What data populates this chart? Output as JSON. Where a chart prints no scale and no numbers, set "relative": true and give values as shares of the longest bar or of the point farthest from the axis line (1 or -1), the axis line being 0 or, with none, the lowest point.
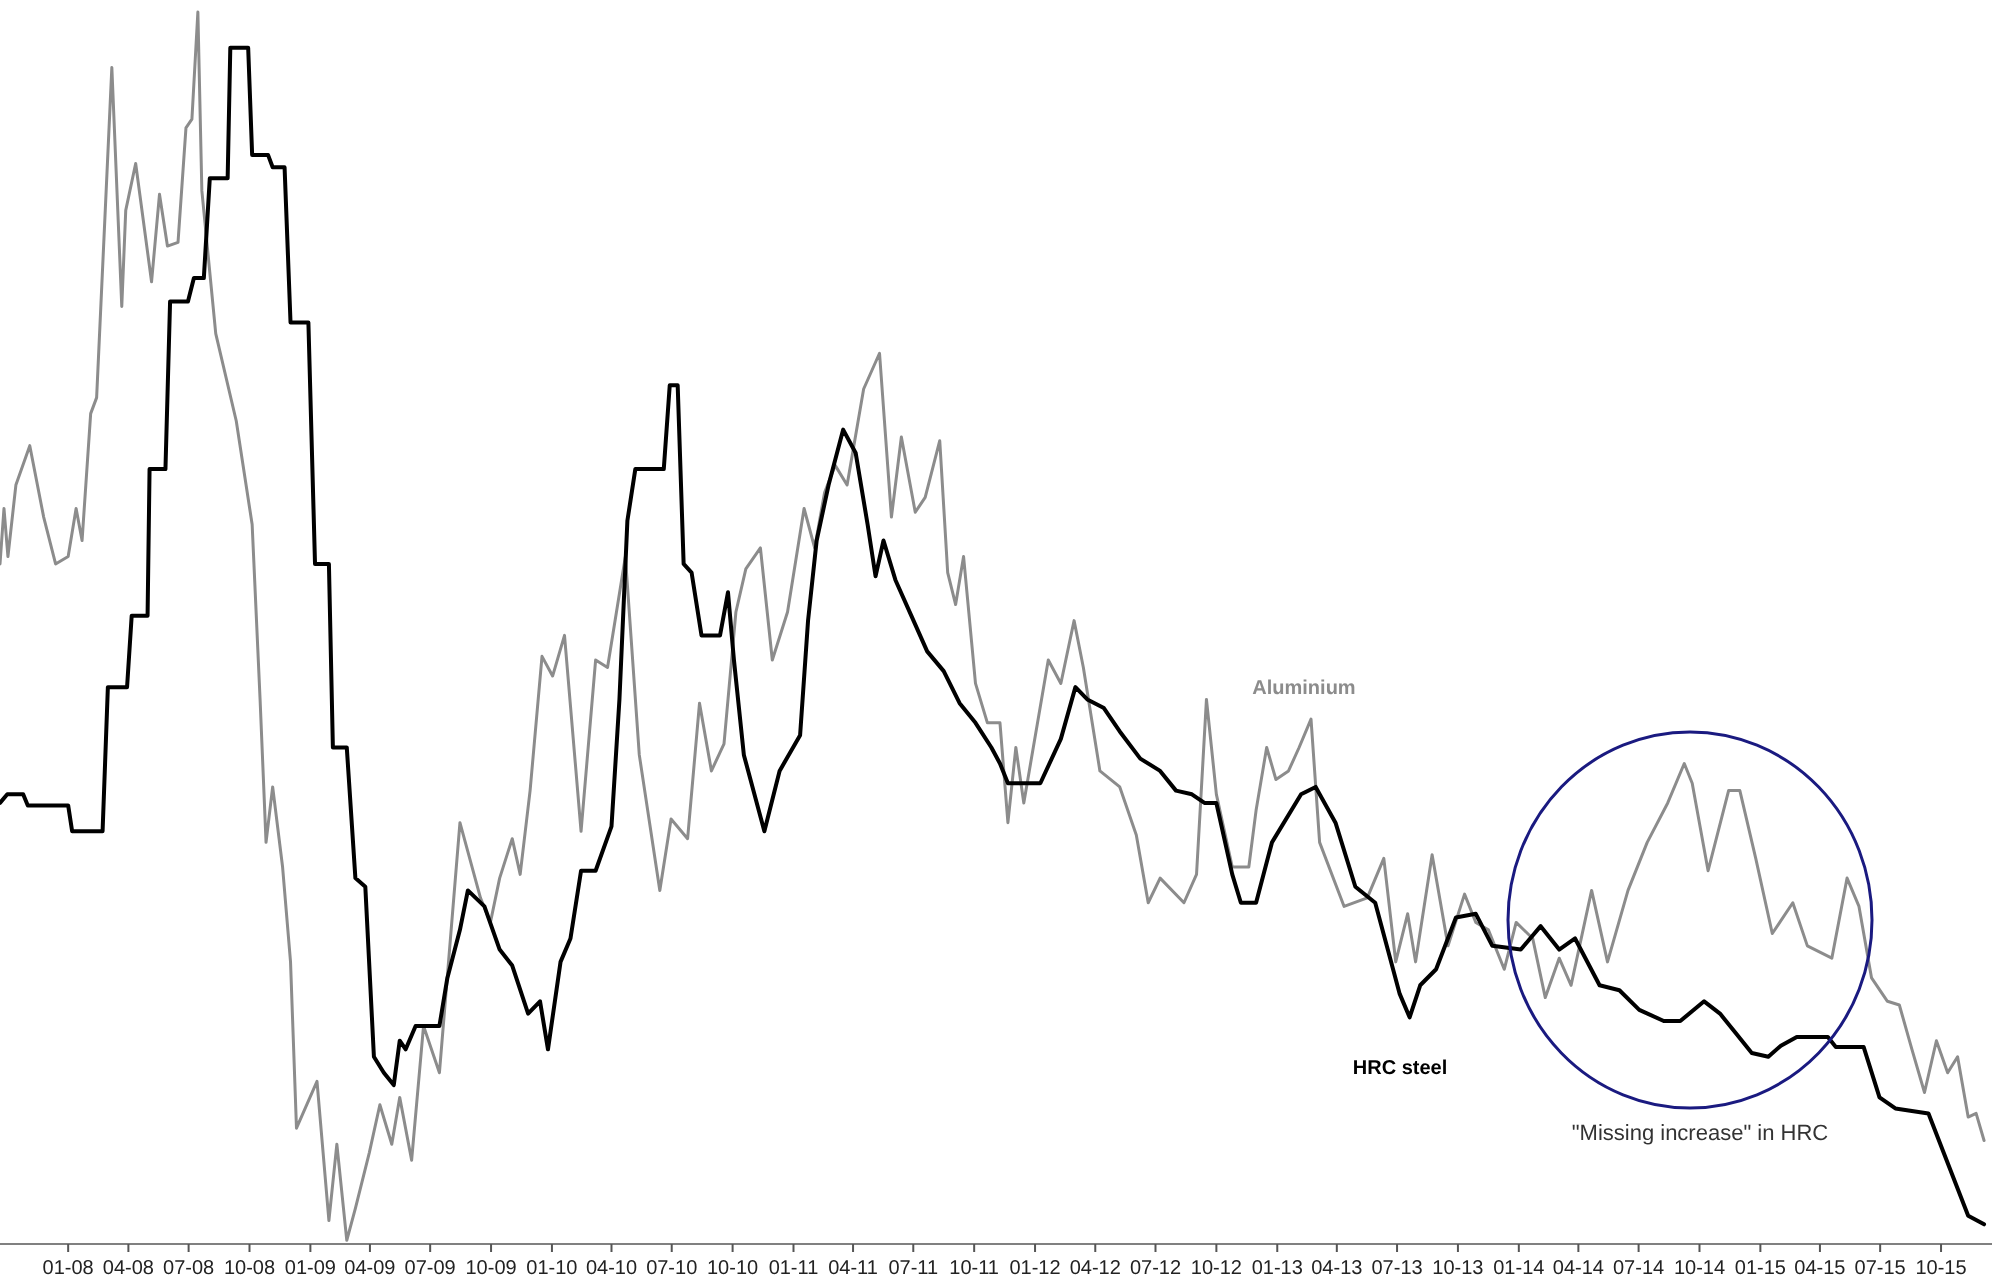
{
  "chart_data": {
    "type": "line",
    "relative": true,
    "xlim": [
      "2007-09-20",
      "2015-12-17"
    ],
    "xticks": [
      {
        "value": "2008-01",
        "label": "01-08"
      },
      {
        "value": "2008-04",
        "label": "04-08"
      },
      {
        "value": "2008-07",
        "label": "07-08"
      },
      {
        "value": "2008-10",
        "label": "10-08"
      },
      {
        "value": "2009-01",
        "label": "01-09"
      },
      {
        "value": "2009-04",
        "label": "04-09"
      },
      {
        "value": "2009-07",
        "label": "07-09"
      },
      {
        "value": "2009-10",
        "label": "10-09"
      },
      {
        "value": "2010-01",
        "label": "01-10"
      },
      {
        "value": "2010-04",
        "label": "04-10"
      },
      {
        "value": "2010-07",
        "label": "07-10"
      },
      {
        "value": "2010-10",
        "label": "10-10"
      },
      {
        "value": "2011-01",
        "label": "01-11"
      },
      {
        "value": "2011-04",
        "label": "04-11"
      },
      {
        "value": "2011-07",
        "label": "07-11"
      },
      {
        "value": "2011-10",
        "label": "10-11"
      },
      {
        "value": "2012-01",
        "label": "01-12"
      },
      {
        "value": "2012-04",
        "label": "04-12"
      },
      {
        "value": "2012-07",
        "label": "07-12"
      },
      {
        "value": "2012-10",
        "label": "10-12"
      },
      {
        "value": "2013-01",
        "label": "01-13"
      },
      {
        "value": "2013-04",
        "label": "04-13"
      },
      {
        "value": "2013-07",
        "label": "07-13"
      },
      {
        "value": "2013-10",
        "label": "10-13"
      },
      {
        "value": "2014-01",
        "label": "01-14"
      },
      {
        "value": "2014-04",
        "label": "04-14"
      },
      {
        "value": "2014-07",
        "label": "07-14"
      },
      {
        "value": "2014-10",
        "label": "10-14"
      },
      {
        "value": "2015-01",
        "label": "01-15"
      },
      {
        "value": "2015-04",
        "label": "04-15"
      },
      {
        "value": "2015-07",
        "label": "07-15"
      },
      {
        "value": "2015-10",
        "label": "10-15"
      }
    ],
    "annotations": [
      "\"Missing increase\" in HRC"
    ],
    "series": [
      {
        "name": "Aluminium",
        "color": "#8c8c8c",
        "x": [
          "2007-09-20",
          "2007-09-26",
          "2007-10-02",
          "2007-10-14",
          "2007-11-04",
          "2007-11-25",
          "2007-12-13",
          "2008-01-01",
          "2008-01-13",
          "2008-01-22",
          "2008-02-04",
          "2008-02-13",
          "2008-03-07",
          "2008-03-22",
          "2008-03-28",
          "2008-04-12",
          "2008-05-06",
          "2008-05-18",
          "2008-05-30",
          "2008-06-15",
          "2008-06-27",
          "2008-07-06",
          "2008-07-15",
          "2008-07-21",
          "2008-08-11",
          "2008-09-11",
          "2008-10-05",
          "2008-10-17",
          "2008-10-26",
          "2008-11-05",
          "2008-11-20",
          "2008-12-02",
          "2008-12-11",
          "2009-01-11",
          "2009-01-29",
          "2009-02-10",
          "2009-02-25",
          "2009-03-10",
          "2009-03-31",
          "2009-04-16",
          "2009-05-04",
          "2009-05-16",
          "2009-06-03",
          "2009-06-21",
          "2009-07-15",
          "2009-08-15",
          "2009-09-15",
          "2009-09-30",
          "2009-10-14",
          "2009-11-02",
          "2009-11-14",
          "2009-11-29",
          "2009-12-17",
          "2010-01-02",
          "2010-01-20",
          "2010-02-14",
          "2010-03-08",
          "2010-03-26",
          "2010-04-22",
          "2010-05-13",
          "2010-06-13",
          "2010-06-30",
          "2010-07-25",
          "2010-08-12",
          "2010-08-30",
          "2010-09-18",
          "2010-10-06",
          "2010-10-21",
          "2010-11-12",
          "2010-11-30",
          "2010-12-23",
          "2011-01-17",
          "2011-02-02",
          "2011-02-17",
          "2011-03-05",
          "2011-03-23",
          "2011-04-17",
          "2011-05-11",
          "2011-05-29",
          "2011-06-13",
          "2011-07-04",
          "2011-07-19",
          "2011-08-10",
          "2011-08-22",
          "2011-09-03",
          "2011-09-15",
          "2011-10-03",
          "2011-10-21",
          "2011-11-09",
          "2011-11-21",
          "2011-12-03",
          "2011-12-15",
          "2012-01-21",
          "2012-02-09",
          "2012-02-29",
          "2012-03-14",
          "2012-04-08",
          "2012-05-08",
          "2012-06-02",
          "2012-06-20",
          "2012-07-08",
          "2012-08-13",
          "2012-09-01",
          "2012-09-16",
          "2012-10-01",
          "2012-10-25",
          "2012-11-19",
          "2012-11-30",
          "2012-12-16",
          "2012-12-30",
          "2013-01-18",
          "2013-02-03",
          "2013-02-21",
          "2013-03-06",
          "2013-04-12",
          "2013-05-17",
          "2013-06-11",
          "2013-06-29",
          "2013-07-17",
          "2013-07-29",
          "2013-08-23",
          "2013-09-16",
          "2013-10-11",
          "2013-10-28",
          "2013-11-16",
          "2013-12-10",
          "2013-12-28",
          "2014-01-22",
          "2014-02-10",
          "2014-03-03",
          "2014-03-21",
          "2014-04-21",
          "2014-05-15",
          "2014-06-15",
          "2014-07-14",
          "2014-08-14",
          "2014-09-08",
          "2014-09-20",
          "2014-10-14",
          "2014-11-14",
          "2014-12-01",
          "2014-12-25",
          "2015-01-19",
          "2015-02-19",
          "2015-03-13",
          "2015-04-19",
          "2015-05-12",
          "2015-05-30",
          "2015-06-18",
          "2015-07-12",
          "2015-07-30",
          "2015-08-18",
          "2015-09-06",
          "2015-09-24",
          "2015-10-11",
          "2015-10-26",
          "2015-11-11",
          "2015-11-23",
          "2015-12-05"
        ],
        "values": [
          0.552,
          0.597,
          0.558,
          0.616,
          0.648,
          0.59,
          0.552,
          0.558,
          0.597,
          0.571,
          0.674,
          0.687,
          0.955,
          0.761,
          0.839,
          0.877,
          0.781,
          0.852,
          0.81,
          0.813,
          0.906,
          0.913,
          1.0,
          0.855,
          0.739,
          0.668,
          0.584,
          0.442,
          0.326,
          0.371,
          0.306,
          0.229,
          0.094,
          0.132,
          0.019,
          0.081,
          0.003,
          0.029,
          0.074,
          0.113,
          0.081,
          0.119,
          0.068,
          0.177,
          0.139,
          0.342,
          0.281,
          0.261,
          0.297,
          0.329,
          0.3,
          0.368,
          0.477,
          0.461,
          0.494,
          0.335,
          0.474,
          0.468,
          0.558,
          0.397,
          0.287,
          0.345,
          0.329,
          0.439,
          0.384,
          0.406,
          0.513,
          0.548,
          0.565,
          0.474,
          0.513,
          0.597,
          0.565,
          0.61,
          0.632,
          0.616,
          0.694,
          0.723,
          0.59,
          0.655,
          0.594,
          0.606,
          0.652,
          0.545,
          0.519,
          0.558,
          0.455,
          0.423,
          0.423,
          0.342,
          0.403,
          0.358,
          0.474,
          0.455,
          0.506,
          0.468,
          0.384,
          0.371,
          0.332,
          0.277,
          0.297,
          0.277,
          0.3,
          0.442,
          0.365,
          0.306,
          0.306,
          0.352,
          0.403,
          0.377,
          0.384,
          0.403,
          0.426,
          0.326,
          0.274,
          0.281,
          0.313,
          0.229,
          0.268,
          0.229,
          0.316,
          0.242,
          0.284,
          0.261,
          0.255,
          0.223,
          0.261,
          0.248,
          0.2,
          0.232,
          0.21,
          0.287,
          0.229,
          0.287,
          0.326,
          0.358,
          0.39,
          0.374,
          0.303,
          0.368,
          0.368,
          0.313,
          0.252,
          0.277,
          0.242,
          0.232,
          0.297,
          0.274,
          0.216,
          0.197,
          0.194,
          0.158,
          0.123,
          0.165,
          0.139,
          0.152,
          0.103,
          0.106,
          0.084
        ]
      },
      {
        "name": "HRC steel",
        "color": "#000000",
        "x": [
          "2007-09-20",
          "2007-10-01",
          "2007-10-25",
          "2007-11-01",
          "2008-01-01",
          "2008-01-07",
          "2008-02-22",
          "2008-03-01",
          "2008-03-30",
          "2008-04-06",
          "2008-04-30",
          "2008-05-03",
          "2008-05-27",
          "2008-06-03",
          "2008-06-30",
          "2008-07-09",
          "2008-07-24",
          "2008-08-02",
          "2008-08-29",
          "2008-09-02",
          "2008-09-29",
          "2008-10-05",
          "2008-10-29",
          "2008-11-05",
          "2008-11-23",
          "2008-12-02",
          "2008-12-29",
          "2009-01-08",
          "2009-01-29",
          "2009-02-04",
          "2009-02-25",
          "2009-03-10",
          "2009-03-25",
          "2009-04-07",
          "2009-04-22",
          "2009-05-07",
          "2009-05-16",
          "2009-05-25",
          "2009-06-09",
          "2009-07-15",
          "2009-07-27",
          "2009-08-15",
          "2009-08-27",
          "2009-09-21",
          "2009-10-14",
          "2009-11-02",
          "2009-11-26",
          "2009-12-14",
          "2009-12-26",
          "2010-01-14",
          "2010-01-29",
          "2010-02-14",
          "2010-03-08",
          "2010-04-01",
          "2010-04-13",
          "2010-04-25",
          "2010-05-07",
          "2010-06-19",
          "2010-06-28",
          "2010-07-10",
          "2010-07-19",
          "2010-07-31",
          "2010-08-15",
          "2010-09-12",
          "2010-09-24",
          "2010-10-03",
          "2010-10-18",
          "2010-11-18",
          "2010-12-11",
          "2011-01-11",
          "2011-01-23",
          "2011-02-05",
          "2011-02-23",
          "2011-03-17",
          "2011-04-05",
          "2011-04-23",
          "2011-05-05",
          "2011-05-17",
          "2011-06-04",
          "2011-06-28",
          "2011-07-22",
          "2011-08-16",
          "2011-09-09",
          "2011-10-03",
          "2011-10-27",
          "2011-11-09",
          "2011-11-21",
          "2012-01-09",
          "2012-02-09",
          "2012-03-02",
          "2012-03-20",
          "2012-04-14",
          "2012-05-08",
          "2012-06-08",
          "2012-07-08",
          "2012-08-01",
          "2012-08-25",
          "2012-09-13",
          "2012-10-01",
          "2012-10-25",
          "2012-11-07",
          "2012-11-30",
          "2012-12-24",
          "2013-02-06",
          "2013-02-28",
          "2013-03-30",
          "2013-04-29",
          "2013-05-29",
          "2013-06-17",
          "2013-07-05",
          "2013-07-20",
          "2013-08-05",
          "2013-08-29",
          "2013-09-28",
          "2013-10-28",
          "2013-11-22",
          "2014-01-04",
          "2014-02-03",
          "2014-03-03",
          "2014-03-27",
          "2014-05-03",
          "2014-06-02",
          "2014-07-02",
          "2014-08-08",
          "2014-09-02",
          "2014-10-08",
          "2014-11-01",
          "2014-11-25",
          "2014-12-19",
          "2015-01-13",
          "2015-02-01",
          "2015-02-25",
          "2015-04-13",
          "2015-04-25",
          "2015-06-06",
          "2015-06-30",
          "2015-07-24",
          "2015-09-12",
          "2015-10-05",
          "2015-11-11",
          "2015-12-05"
        ],
        "values": [
          0.358,
          0.365,
          0.365,
          0.356,
          0.356,
          0.335,
          0.335,
          0.452,
          0.452,
          0.51,
          0.51,
          0.629,
          0.629,
          0.765,
          0.765,
          0.784,
          0.784,
          0.865,
          0.865,
          0.971,
          0.971,
          0.884,
          0.884,
          0.874,
          0.874,
          0.748,
          0.748,
          0.552,
          0.552,
          0.403,
          0.403,
          0.297,
          0.29,
          0.152,
          0.139,
          0.129,
          0.165,
          0.158,
          0.177,
          0.177,
          0.216,
          0.255,
          0.287,
          0.274,
          0.239,
          0.226,
          0.187,
          0.197,
          0.158,
          0.229,
          0.248,
          0.303,
          0.303,
          0.339,
          0.442,
          0.587,
          0.629,
          0.629,
          0.697,
          0.697,
          0.552,
          0.545,
          0.494,
          0.494,
          0.529,
          0.474,
          0.397,
          0.335,
          0.384,
          0.413,
          0.506,
          0.571,
          0.616,
          0.661,
          0.642,
          0.584,
          0.542,
          0.571,
          0.539,
          0.51,
          0.481,
          0.465,
          0.439,
          0.423,
          0.403,
          0.39,
          0.374,
          0.374,
          0.41,
          0.452,
          0.442,
          0.435,
          0.416,
          0.394,
          0.384,
          0.368,
          0.365,
          0.358,
          0.358,
          0.3,
          0.277,
          0.277,
          0.326,
          0.365,
          0.371,
          0.342,
          0.29,
          0.277,
          0.239,
          0.203,
          0.184,
          0.21,
          0.223,
          0.265,
          0.268,
          0.242,
          0.239,
          0.258,
          0.239,
          0.248,
          0.21,
          0.206,
          0.19,
          0.181,
          0.181,
          0.197,
          0.187,
          0.171,
          0.155,
          0.152,
          0.161,
          0.168,
          0.168,
          0.16,
          0.16,
          0.119,
          0.11,
          0.106,
          0.074,
          0.023,
          0.016
        ]
      }
    ]
  }
}
